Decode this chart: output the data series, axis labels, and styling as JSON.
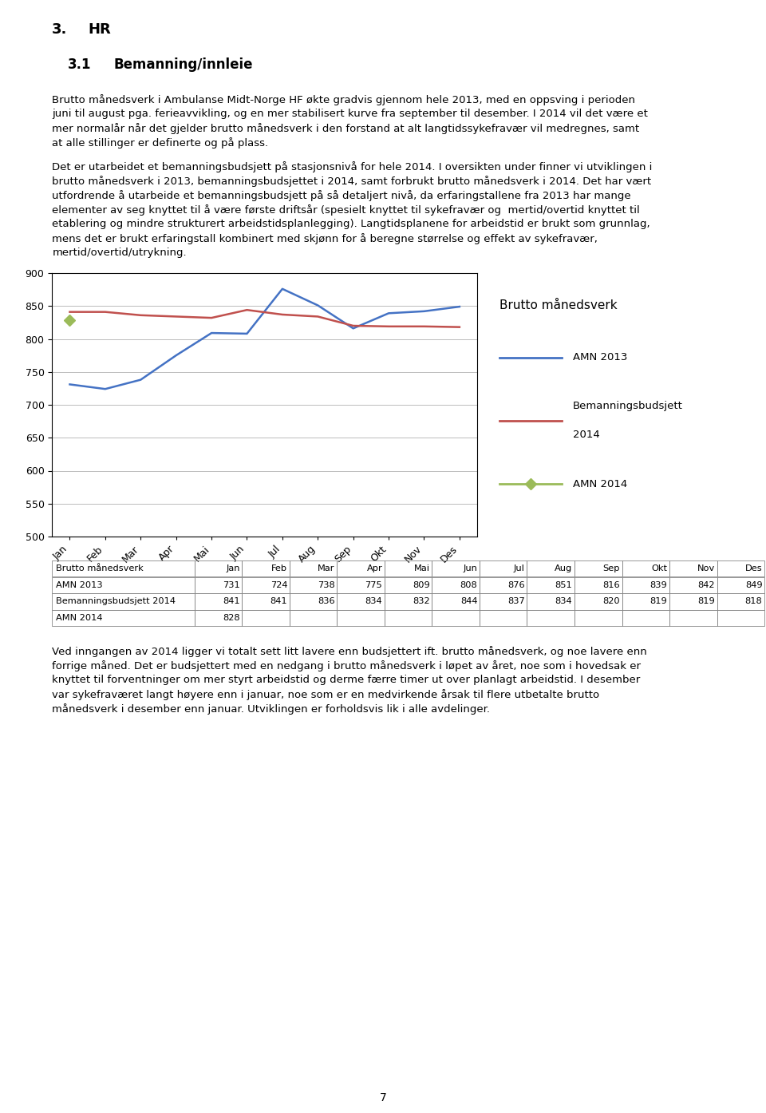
{
  "months": [
    "Jan",
    "Feb",
    "Mar",
    "Apr",
    "Mai",
    "Jun",
    "Jul",
    "Aug",
    "Sep",
    "Okt",
    "Nov",
    "Des"
  ],
  "amn2013": [
    731,
    724,
    738,
    775,
    809,
    808,
    876,
    851,
    816,
    839,
    842,
    849
  ],
  "budget2014": [
    841,
    841,
    836,
    834,
    832,
    844,
    837,
    834,
    820,
    819,
    819,
    818
  ],
  "amn2014_jan": 828,
  "ylim": [
    500,
    900
  ],
  "yticks": [
    500,
    550,
    600,
    650,
    700,
    750,
    800,
    850,
    900
  ],
  "legend_title": "Brutto månedsverk",
  "line_amn2013_color": "#4472C4",
  "line_budget2014_color": "#C0504D",
  "line_amn2014_color": "#9BBB59",
  "page_number": "7",
  "title1": "3.",
  "title2": "HR",
  "subtitle1": "3.1",
  "subtitle2": "Bemanning/innleie",
  "para1_lines": [
    "Brutto månedsverk i Ambulanse Midt-Norge HF økte gradvis gjennom hele 2013, med en oppsving i perioden",
    "juni til august pga. ferieavvikling, og en mer stabilisert kurve fra september til desember. I 2014 vil det være et",
    "mer normalår når det gjelder brutto månedsverk i den forstand at alt langtidssykefravær vil medregnes, samt",
    "at alle stillinger er definerte og på plass."
  ],
  "para2_lines": [
    "Det er utarbeidet et bemanningsbudsjett på stasjonsnivå for hele 2014. I oversikten under finner vi utviklingen i",
    "brutto månedsverk i 2013, bemanningsbudsjettet i 2014, samt forbrukt brutto månedsverk i 2014. Det har vært",
    "utfordrende å utarbeide et bemanningsbudsjett på så detaljert nivå, da erfaringstallene fra 2013 har mange",
    "elementer av seg knyttet til å være første driftsår (spesielt knyttet til sykefravær og  mertid/overtid knyttet til",
    "etablering og mindre strukturert arbeidstidsplanlegging). Langtidsplanene for arbeidstid er brukt som grunnlag,",
    "mens det er brukt erfaringstall kombinert med skjønn for å beregne størrelse og effekt av sykefravær,",
    "mertid/overtid/utrykning."
  ],
  "para3_lines": [
    "Ved inngangen av 2014 ligger vi totalt sett litt lavere enn budsjettert ift. brutto månedsverk, og noe lavere enn",
    "forrige måned. Det er budsjettert med en nedgang i brutto månedsverk i løpet av året, noe som i hovedsak er",
    "knyttet til forventninger om mer styrt arbeidstid og derme færre timer ut over planlagt arbeidstid. I desember",
    "var sykefraværet langt høyere enn i januar, noe som er en medvirkende årsak til flere utbetalte brutto",
    "månedsverk i desember enn januar. Utviklingen er forholdsvis lik i alle avdelinger."
  ],
  "table_header_label": "Brutto månedsverk",
  "table_row_labels": [
    "AMN 2013",
    "Bemanningsbudsjett 2014",
    "AMN 2014"
  ],
  "table_amn2013": [
    "731",
    "724",
    "738",
    "775",
    "809",
    "808",
    "876",
    "851",
    "816",
    "839",
    "842",
    "849"
  ],
  "table_budget2014": [
    "841",
    "841",
    "836",
    "834",
    "832",
    "844",
    "837",
    "834",
    "820",
    "819",
    "819",
    "818"
  ],
  "table_amn2014": [
    "828",
    "",
    "",
    "",
    "",
    "",
    "",
    "",
    "",
    "",
    "",
    ""
  ]
}
